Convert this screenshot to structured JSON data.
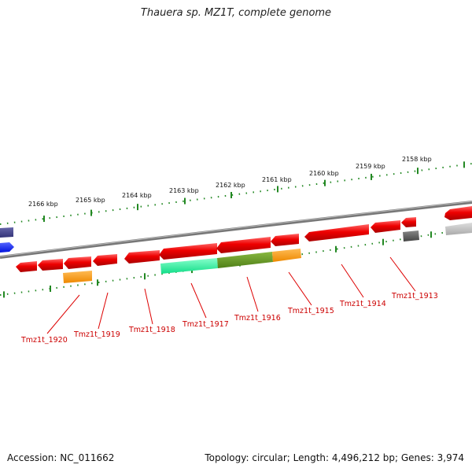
{
  "title": "Thauera sp. MZ1T, complete genome",
  "footer": {
    "accession": "Accession: NC_011662",
    "info": "Topology: circular; Length: 4,496,212 bp; Genes: 3,974"
  },
  "scale_labels": [
    "2166 kbp",
    "2165 kbp",
    "2164 kbp",
    "2163 kbp",
    "2162 kbp",
    "2161 kbp",
    "2160 kbp",
    "2159 kbp",
    "2158 kbp"
  ],
  "gene_labels": [
    "Tmz1t_1920",
    "Tmz1t_1919",
    "Tmz1t_1918",
    "Tmz1t_1917",
    "Tmz1t_1916",
    "Tmz1t_1915",
    "Tmz1t_1914",
    "Tmz1t_1913"
  ],
  "colors": {
    "cds": "#ee0000",
    "highlight_teal": "#22ee99",
    "highlight_olive": "#6a9a22",
    "highlight_orange": "#ff9900",
    "dark_gray": "#555555",
    "light_gray": "#bbbbbb",
    "navy": "#333388",
    "blue": "#0022ff",
    "tick": "#228822",
    "backbone": "#888888"
  }
}
